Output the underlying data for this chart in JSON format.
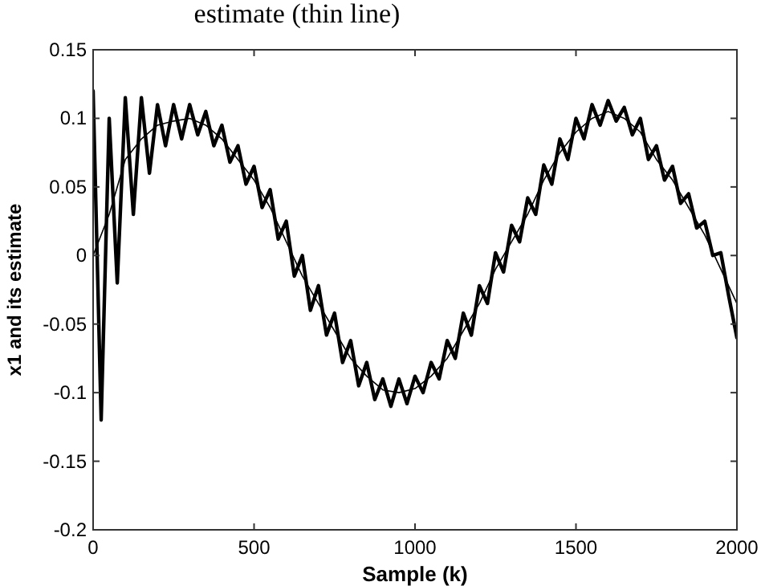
{
  "chart_data": {
    "type": "line",
    "title": "estimate (thin line)",
    "xlabel": "Sample (k)",
    "ylabel": "x1 and its estimate",
    "xlim": [
      0,
      2000
    ],
    "xticks": [
      0,
      500,
      1000,
      1500,
      2000
    ],
    "ylim": [
      -0.2,
      0.15
    ],
    "yticks": [
      -0.2,
      -0.15,
      -0.1,
      -0.05,
      0,
      0.05,
      0.1,
      0.15
    ],
    "grid": false,
    "line_style": "solid",
    "series": [
      {
        "color": "#000000",
        "x": [
          0,
          25,
          50,
          75,
          100,
          125,
          150,
          175,
          200,
          225,
          250,
          275,
          300,
          325,
          350,
          375,
          400,
          425,
          450,
          475,
          500,
          525,
          550,
          575,
          600,
          625,
          650,
          675,
          700,
          725,
          750,
          775,
          800,
          825,
          850,
          875,
          900,
          925,
          950,
          975,
          1000,
          1025,
          1050,
          1075,
          1100,
          1125,
          1150,
          1175,
          1200,
          1225,
          1250,
          1275,
          1300,
          1325,
          1350,
          1375,
          1400,
          1425,
          1450,
          1475,
          1500,
          1525,
          1550,
          1575,
          1600,
          1625,
          1650,
          1675,
          1700,
          1725,
          1750,
          1775,
          1800,
          1825,
          1850,
          1875,
          1900,
          1925,
          1950,
          1975,
          2000
        ],
        "values": [
          0.12,
          -0.12,
          0.1,
          -0.02,
          0.115,
          0.03,
          0.115,
          0.06,
          0.11,
          0.08,
          0.11,
          0.085,
          0.11,
          0.088,
          0.105,
          0.08,
          0.095,
          0.068,
          0.08,
          0.052,
          0.065,
          0.035,
          0.048,
          0.012,
          0.025,
          -0.015,
          0.0,
          -0.04,
          -0.022,
          -0.058,
          -0.042,
          -0.078,
          -0.062,
          -0.095,
          -0.078,
          -0.105,
          -0.09,
          -0.11,
          -0.09,
          -0.108,
          -0.088,
          -0.1,
          -0.078,
          -0.09,
          -0.062,
          -0.075,
          -0.042,
          -0.058,
          -0.022,
          -0.035,
          0.002,
          -0.012,
          0.022,
          0.01,
          0.042,
          0.03,
          0.066,
          0.052,
          0.085,
          0.07,
          0.1,
          0.085,
          0.11,
          0.095,
          0.113,
          0.098,
          0.108,
          0.088,
          0.1,
          0.07,
          0.08,
          0.055,
          0.065,
          0.038,
          0.045,
          0.02,
          0.025,
          0.0,
          0.002,
          -0.03,
          -0.06
        ]
      },
      {
        "color": "#000000",
        "x": [
          0,
          50,
          100,
          150,
          200,
          250,
          300,
          350,
          400,
          450,
          500,
          550,
          600,
          650,
          700,
          750,
          800,
          850,
          900,
          950,
          1000,
          1050,
          1100,
          1150,
          1200,
          1250,
          1300,
          1350,
          1400,
          1450,
          1500,
          1550,
          1600,
          1650,
          1700,
          1750,
          1800,
          1850,
          1900,
          1950,
          2000
        ],
        "values": [
          0.0,
          0.03,
          0.07,
          0.085,
          0.095,
          0.098,
          0.1,
          0.095,
          0.085,
          0.07,
          0.055,
          0.035,
          0.01,
          -0.015,
          -0.035,
          -0.055,
          -0.075,
          -0.088,
          -0.098,
          -0.1,
          -0.097,
          -0.088,
          -0.075,
          -0.055,
          -0.035,
          -0.01,
          0.01,
          0.03,
          0.055,
          0.075,
          0.09,
          0.1,
          0.105,
          0.1,
          0.09,
          0.07,
          0.055,
          0.035,
          0.015,
          -0.01,
          -0.035
        ]
      }
    ]
  }
}
